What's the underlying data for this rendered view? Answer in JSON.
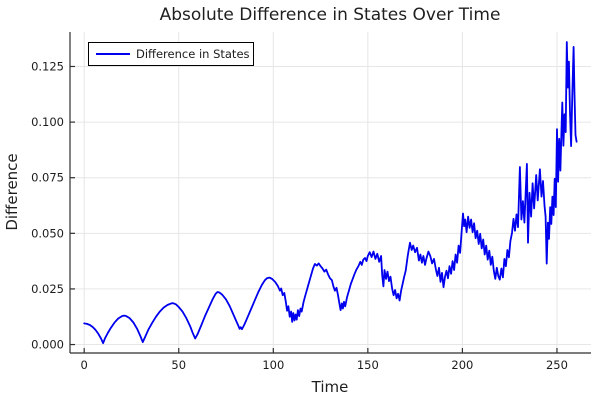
{
  "chart_data": {
    "type": "line",
    "title": "Absolute Difference in States Over Time",
    "xlabel": "Time",
    "ylabel": "Difference",
    "xlim": [
      -7.5,
      268
    ],
    "ylim": [
      -0.0038,
      0.1405
    ],
    "grid": true,
    "x_ticks": {
      "values": [
        0,
        50,
        100,
        150,
        200,
        250
      ],
      "labels": [
        "0",
        "50",
        "100",
        "150",
        "200",
        "250"
      ]
    },
    "y_ticks": {
      "values": [
        0,
        0.025,
        0.05,
        0.075,
        0.1,
        0.125
      ],
      "labels": [
        "0.000",
        "0.025",
        "0.050",
        "0.075",
        "0.100",
        "0.125"
      ]
    },
    "legend": {
      "position": "top-left",
      "entries": [
        {
          "label": "Difference in States",
          "color": "#0000ee"
        }
      ]
    },
    "series": [
      {
        "name": "Difference in States",
        "color": "#0000ee",
        "line_width": 1.8,
        "points": [
          [
            0,
            0.0095
          ],
          [
            1.5,
            0.0093
          ],
          [
            3,
            0.0088
          ],
          [
            4.5,
            0.0079
          ],
          [
            6,
            0.0066
          ],
          [
            7.5,
            0.0048
          ],
          [
            9,
            0.0026
          ],
          [
            10,
            0.0006
          ],
          [
            11,
            0.0028
          ],
          [
            12.5,
            0.0052
          ],
          [
            14,
            0.0074
          ],
          [
            16,
            0.0098
          ],
          [
            18,
            0.0117
          ],
          [
            20,
            0.0128
          ],
          [
            21,
            0.013
          ],
          [
            22,
            0.0129
          ],
          [
            24,
            0.0119
          ],
          [
            26,
            0.0099
          ],
          [
            28,
            0.0071
          ],
          [
            29.5,
            0.0042
          ],
          [
            31,
            0.0011
          ],
          [
            32.5,
            0.0039
          ],
          [
            34,
            0.0068
          ],
          [
            36,
            0.0098
          ],
          [
            38,
            0.0125
          ],
          [
            40,
            0.0148
          ],
          [
            42,
            0.0166
          ],
          [
            44,
            0.0178
          ],
          [
            46,
            0.0185
          ],
          [
            47,
            0.0186
          ],
          [
            48.5,
            0.0181
          ],
          [
            50,
            0.0169
          ],
          [
            52,
            0.0148
          ],
          [
            54,
            0.0119
          ],
          [
            56,
            0.0083
          ],
          [
            57.5,
            0.005
          ],
          [
            58.7,
            0.0027
          ],
          [
            60,
            0.0047
          ],
          [
            62,
            0.0088
          ],
          [
            64,
            0.013
          ],
          [
            66,
            0.0168
          ],
          [
            68,
            0.0205
          ],
          [
            69.5,
            0.0228
          ],
          [
            70.5,
            0.0236
          ],
          [
            71.5,
            0.0234
          ],
          [
            73,
            0.0224
          ],
          [
            75,
            0.0203
          ],
          [
            77,
            0.0172
          ],
          [
            79,
            0.0133
          ],
          [
            80.5,
            0.0104
          ],
          [
            81.5,
            0.0085
          ],
          [
            82.2,
            0.0071
          ],
          [
            82.8,
            0.0078
          ],
          [
            83.4,
            0.0069
          ],
          [
            84.2,
            0.0081
          ],
          [
            85,
            0.0095
          ],
          [
            86.5,
            0.0125
          ],
          [
            88,
            0.0155
          ],
          [
            90,
            0.0195
          ],
          [
            92,
            0.0235
          ],
          [
            94,
            0.0268
          ],
          [
            95.5,
            0.0289
          ],
          [
            96.6,
            0.0298
          ],
          [
            98,
            0.0301
          ],
          [
            99.5,
            0.0294
          ],
          [
            101,
            0.0281
          ],
          [
            102.5,
            0.0262
          ],
          [
            103.5,
            0.0242
          ],
          [
            104.2,
            0.0252
          ],
          [
            105,
            0.0222
          ],
          [
            105.8,
            0.0232
          ],
          [
            106.6,
            0.0192
          ],
          [
            107.3,
            0.0152
          ],
          [
            108,
            0.0172
          ],
          [
            108.7,
            0.0125
          ],
          [
            109.4,
            0.0148
          ],
          [
            110,
            0.0102
          ],
          [
            110.6,
            0.0142
          ],
          [
            111.2,
            0.0108
          ],
          [
            111.8,
            0.0135
          ],
          [
            112.4,
            0.0112
          ],
          [
            113,
            0.0155
          ],
          [
            113.7,
            0.0128
          ],
          [
            114.4,
            0.0162
          ],
          [
            115,
            0.0148
          ],
          [
            116,
            0.0192
          ],
          [
            117,
            0.0222
          ],
          [
            118,
            0.0252
          ],
          [
            119,
            0.0282
          ],
          [
            120,
            0.0312
          ],
          [
            121,
            0.0342
          ],
          [
            122,
            0.0362
          ],
          [
            123,
            0.0355
          ],
          [
            124,
            0.0365
          ],
          [
            125,
            0.0352
          ],
          [
            126,
            0.0342
          ],
          [
            127,
            0.0328
          ],
          [
            128,
            0.0337
          ],
          [
            129,
            0.0315
          ],
          [
            130,
            0.0298
          ],
          [
            131,
            0.0289
          ],
          [
            131.8,
            0.0262
          ],
          [
            132.6,
            0.0242
          ],
          [
            133.4,
            0.0255
          ],
          [
            134.2,
            0.0222
          ],
          [
            135,
            0.0182
          ],
          [
            135.6,
            0.0155
          ],
          [
            136.2,
            0.0185
          ],
          [
            136.8,
            0.0162
          ],
          [
            137.4,
            0.0192
          ],
          [
            138,
            0.0172
          ],
          [
            139,
            0.0212
          ],
          [
            140,
            0.0242
          ],
          [
            141,
            0.0272
          ],
          [
            142,
            0.0295
          ],
          [
            143,
            0.0318
          ],
          [
            144,
            0.0338
          ],
          [
            145,
            0.0352
          ],
          [
            146,
            0.0372
          ],
          [
            146.8,
            0.0358
          ],
          [
            147.6,
            0.0382
          ],
          [
            148.5,
            0.0389
          ],
          [
            149.3,
            0.0375
          ],
          [
            150,
            0.0398
          ],
          [
            151,
            0.0415
          ],
          [
            152,
            0.0393
          ],
          [
            153,
            0.0418
          ],
          [
            154,
            0.0385
          ],
          [
            155,
            0.0408
          ],
          [
            156,
            0.0372
          ],
          [
            157,
            0.0398
          ],
          [
            157.6,
            0.0312
          ],
          [
            158.2,
            0.0262
          ],
          [
            158.8,
            0.0335
          ],
          [
            159.6,
            0.0295
          ],
          [
            160.4,
            0.0328
          ],
          [
            161.2,
            0.0285
          ],
          [
            162,
            0.0305
          ],
          [
            162.8,
            0.0252
          ],
          [
            163.6,
            0.0222
          ],
          [
            164.4,
            0.0245
          ],
          [
            165.2,
            0.0208
          ],
          [
            166,
            0.0228
          ],
          [
            166.8,
            0.0198
          ],
          [
            167.6,
            0.0242
          ],
          [
            168.4,
            0.0272
          ],
          [
            169.2,
            0.0305
          ],
          [
            170,
            0.0332
          ],
          [
            171,
            0.0395
          ],
          [
            171.6,
            0.0425
          ],
          [
            172.3,
            0.0458
          ],
          [
            173.2,
            0.0425
          ],
          [
            174,
            0.0445
          ],
          [
            175,
            0.0415
          ],
          [
            176,
            0.0435
          ],
          [
            177,
            0.0378
          ],
          [
            177.8,
            0.0405
          ],
          [
            178.6,
            0.0368
          ],
          [
            179.4,
            0.0398
          ],
          [
            180.2,
            0.0358
          ],
          [
            181,
            0.0388
          ],
          [
            182,
            0.0418
          ],
          [
            183,
            0.0398
          ],
          [
            184,
            0.0365
          ],
          [
            185,
            0.0385
          ],
          [
            186,
            0.0338
          ],
          [
            186.8,
            0.0308
          ],
          [
            187.6,
            0.0345
          ],
          [
            188.4,
            0.0282
          ],
          [
            189.2,
            0.0322
          ],
          [
            190,
            0.0258
          ],
          [
            190.8,
            0.0305
          ],
          [
            191.6,
            0.0332
          ],
          [
            192.4,
            0.0298
          ],
          [
            193.2,
            0.0352
          ],
          [
            194,
            0.0318
          ],
          [
            194.8,
            0.0375
          ],
          [
            195.6,
            0.0335
          ],
          [
            196.4,
            0.0405
          ],
          [
            197.2,
            0.0368
          ],
          [
            198,
            0.0445
          ],
          [
            198.8,
            0.0412
          ],
          [
            199.6,
            0.0505
          ],
          [
            200.3,
            0.0589
          ],
          [
            200.9,
            0.0532
          ],
          [
            201.5,
            0.0562
          ],
          [
            202.2,
            0.0505
          ],
          [
            203,
            0.0575
          ],
          [
            203.8,
            0.0525
          ],
          [
            204.6,
            0.0562
          ],
          [
            205.4,
            0.0505
          ],
          [
            206.2,
            0.0545
          ],
          [
            207,
            0.0478
          ],
          [
            207.8,
            0.0512
          ],
          [
            208.6,
            0.0452
          ],
          [
            209.4,
            0.0498
          ],
          [
            210.2,
            0.0432
          ],
          [
            211,
            0.0472
          ],
          [
            211.8,
            0.0405
          ],
          [
            212.6,
            0.0445
          ],
          [
            213.4,
            0.0382
          ],
          [
            214.2,
            0.0422
          ],
          [
            215,
            0.0358
          ],
          [
            215.8,
            0.0395
          ],
          [
            216.6,
            0.0332
          ],
          [
            217.4,
            0.0295
          ],
          [
            218.2,
            0.0345
          ],
          [
            219,
            0.0308
          ],
          [
            219.8,
            0.0292
          ],
          [
            220.6,
            0.0342
          ],
          [
            221.4,
            0.0302
          ],
          [
            222.2,
            0.0385
          ],
          [
            223,
            0.0352
          ],
          [
            223.8,
            0.0425
          ],
          [
            224.6,
            0.0392
          ],
          [
            225.4,
            0.0465
          ],
          [
            226.2,
            0.0502
          ],
          [
            227,
            0.0565
          ],
          [
            227.8,
            0.0512
          ],
          [
            228.6,
            0.0585
          ],
          [
            229.4,
            0.0528
          ],
          [
            230.4,
            0.0798
          ],
          [
            231.2,
            0.0562
          ],
          [
            232,
            0.0645
          ],
          [
            232.8,
            0.0548
          ],
          [
            234.1,
            0.0812
          ],
          [
            234.7,
            0.0458
          ],
          [
            235.5,
            0.0682
          ],
          [
            236.3,
            0.0575
          ],
          [
            237.1,
            0.0725
          ],
          [
            237.9,
            0.0612
          ],
          [
            239,
            0.0762
          ],
          [
            239.8,
            0.0648
          ],
          [
            241,
            0.0788
          ],
          [
            241.8,
            0.0665
          ],
          [
            242.6,
            0.0735
          ],
          [
            243.4,
            0.0625
          ],
          [
            244,
            0.0575
          ],
          [
            244.6,
            0.0364
          ],
          [
            245.2,
            0.0548
          ],
          [
            245.8,
            0.0475
          ],
          [
            246.4,
            0.0618
          ],
          [
            247,
            0.0542
          ],
          [
            247.6,
            0.0665
          ],
          [
            248.2,
            0.0582
          ],
          [
            248.8,
            0.0745
          ],
          [
            249.4,
            0.0618
          ],
          [
            250,
            0.0968
          ],
          [
            250.6,
            0.0732
          ],
          [
            251.2,
            0.0925
          ],
          [
            251.8,
            0.0782
          ],
          [
            252.4,
            0.0965
          ],
          [
            252.8,
            0.1088
          ],
          [
            253.4,
            0.0894
          ],
          [
            254,
            0.1035
          ],
          [
            254.6,
            0.0955
          ],
          [
            255.2,
            0.136
          ],
          [
            255.8,
            0.1155
          ],
          [
            256.3,
            0.1272
          ],
          [
            256.9,
            0.1042
          ],
          [
            257.5,
            0.0892
          ],
          [
            258.1,
            0.1122
          ],
          [
            258.8,
            0.1338
          ],
          [
            259.3,
            0.1125
          ],
          [
            259.8,
            0.0942
          ],
          [
            260.4,
            0.0912
          ]
        ]
      }
    ]
  },
  "colors": {
    "background": "#ffffff",
    "grid": "#e6e6e6",
    "axis": "#2f2f2f",
    "tick_text": "#1c1c1c",
    "title_text": "#1f1f1f",
    "label_text": "#1f1f1f",
    "legend_border": "#000000",
    "legend_fill": "#ffffff"
  }
}
